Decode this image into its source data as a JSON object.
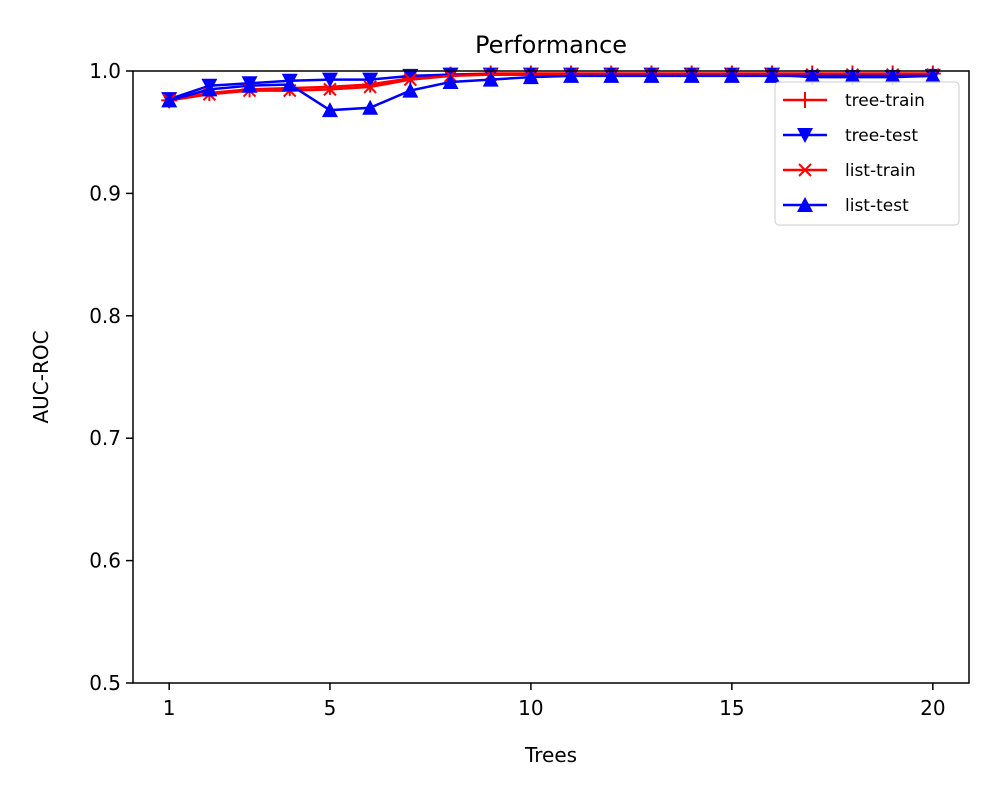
{
  "chart_data": {
    "type": "line",
    "title": "Performance",
    "xlabel": "Trees",
    "ylabel": "AUC-ROC",
    "xlim": [
      0.1,
      20.9
    ],
    "ylim": [
      0.5,
      1.0
    ],
    "xticks": [
      1,
      5,
      10,
      15,
      20
    ],
    "yticks": [
      0.5,
      0.6,
      0.7,
      0.8,
      0.9,
      1.0
    ],
    "xtick_labels": [
      "1",
      "5",
      "10",
      "15",
      "20"
    ],
    "ytick_labels": [
      "0.5",
      "0.6",
      "0.7",
      "0.8",
      "0.9",
      "1.0"
    ],
    "grid": false,
    "legend_position": "top-right",
    "x": [
      1,
      2,
      3,
      4,
      5,
      6,
      7,
      8,
      9,
      10,
      11,
      12,
      13,
      14,
      15,
      16,
      17,
      18,
      19,
      20
    ],
    "series": [
      {
        "name": "tree-train",
        "color": "#ff0000",
        "marker": "plus",
        "values": [
          0.976,
          0.982,
          0.985,
          0.986,
          0.987,
          0.989,
          0.994,
          0.997,
          0.998,
          0.998,
          0.998,
          0.998,
          0.998,
          0.998,
          0.998,
          0.998,
          0.998,
          0.998,
          0.998,
          0.998
        ]
      },
      {
        "name": "tree-test",
        "color": "#0000ff",
        "marker": "triangle-down",
        "values": [
          0.977,
          0.988,
          0.99,
          0.992,
          0.993,
          0.993,
          0.996,
          0.997,
          0.997,
          0.997,
          0.997,
          0.997,
          0.997,
          0.997,
          0.997,
          0.997,
          0.995,
          0.995,
          0.995,
          0.996
        ]
      },
      {
        "name": "list-train",
        "color": "#ff0000",
        "marker": "x",
        "values": [
          0.976,
          0.981,
          0.984,
          0.984,
          0.985,
          0.987,
          0.993,
          0.996,
          0.997,
          0.997,
          0.997,
          0.997,
          0.997,
          0.997,
          0.997,
          0.997,
          0.997,
          0.997,
          0.997,
          0.997
        ]
      },
      {
        "name": "list-test",
        "color": "#0000ff",
        "marker": "triangle-up",
        "values": [
          0.976,
          0.985,
          0.988,
          0.989,
          0.968,
          0.97,
          0.984,
          0.991,
          0.993,
          0.995,
          0.996,
          0.996,
          0.996,
          0.996,
          0.996,
          0.996,
          0.996,
          0.996,
          0.996,
          0.996
        ]
      }
    ]
  }
}
